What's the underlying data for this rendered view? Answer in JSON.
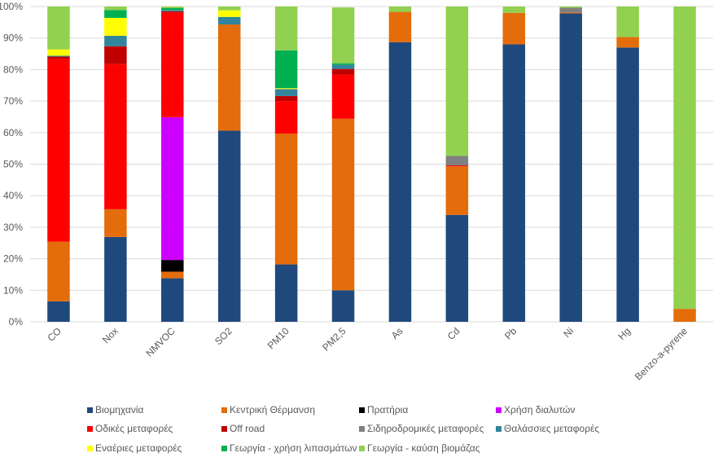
{
  "chart_data": {
    "type": "bar",
    "stacked": true,
    "percent_stacked": true,
    "title": "",
    "xlabel": "",
    "ylabel": "",
    "ylim": [
      0,
      100
    ],
    "y_ticks": [
      "0%",
      "10%",
      "20%",
      "30%",
      "40%",
      "50%",
      "60%",
      "70%",
      "80%",
      "90%",
      "100%"
    ],
    "grid": true,
    "legend_position": "bottom",
    "categories": [
      "CO",
      "Nox",
      "NMVOC",
      "SO2",
      "PM10",
      "PM2,5",
      "As",
      "Cd",
      "Pb",
      "Ni",
      "Hg",
      "Benzo-a-pyrene"
    ],
    "series": [
      {
        "name": "Βιομηχανία",
        "color": "#1F497D",
        "values": [
          6.5,
          26.9,
          13.8,
          60.6,
          18.2,
          10.0,
          88.7,
          33.9,
          88.0,
          97.8,
          87.0,
          0.0
        ]
      },
      {
        "name": "Κεντρική Θέρμανση",
        "color": "#E46C0A",
        "values": [
          18.9,
          8.8,
          2.1,
          33.7,
          41.5,
          54.4,
          9.6,
          15.4,
          10.0,
          0.3,
          3.3,
          4.1
        ]
      },
      {
        "name": "Πρατήρια",
        "color": "#000000",
        "values": [
          0,
          0,
          3.7,
          0,
          0,
          0,
          0,
          0,
          0,
          0,
          0,
          0
        ]
      },
      {
        "name": "Χρήση διαλυτών",
        "color": "#CC00FF",
        "values": [
          0,
          0,
          45.3,
          0,
          0,
          0,
          0,
          0,
          0,
          0,
          0,
          0
        ]
      },
      {
        "name": "Οδικές μεταφορές",
        "color": "#FF0000",
        "values": [
          57.9,
          46.0,
          33.1,
          0,
          10.3,
          14.0,
          0,
          0.3,
          0,
          0,
          0,
          0
        ]
      },
      {
        "name": "Off road",
        "color": "#C00000",
        "values": [
          0.8,
          5.7,
          0.5,
          0,
          1.6,
          1.8,
          0,
          0,
          0,
          0,
          0,
          0
        ]
      },
      {
        "name": "Σιδηροδρομικές μεταφορές",
        "color": "#808080",
        "values": [
          0,
          0,
          0,
          0,
          0,
          0,
          0,
          3.0,
          0,
          1.5,
          0,
          0
        ]
      },
      {
        "name": "Θαλάσσιες μεταφορές",
        "color": "#31859C",
        "values": [
          0.3,
          3.3,
          0.4,
          2.4,
          2.2,
          1.3,
          0,
          0,
          0,
          0,
          0,
          0
        ]
      },
      {
        "name": "Εναέριες μεταφορές",
        "color": "#FFFF00",
        "values": [
          2.0,
          5.7,
          0,
          2.1,
          0.3,
          0,
          0,
          0,
          0,
          0,
          0,
          0
        ]
      },
      {
        "name": "Γεωργία - χρήση λιπασμάτων",
        "color": "#00B050",
        "values": [
          0,
          2.5,
          0.6,
          0,
          12.0,
          0.5,
          0,
          0,
          0,
          0,
          0,
          0
        ]
      },
      {
        "name": "Γεωργία - καύση βιομάζας",
        "color": "#92D050",
        "values": [
          13.6,
          1.1,
          0.5,
          1.2,
          13.9,
          17.7,
          1.7,
          47.4,
          2.0,
          0.4,
          9.7,
          95.9
        ]
      }
    ]
  }
}
